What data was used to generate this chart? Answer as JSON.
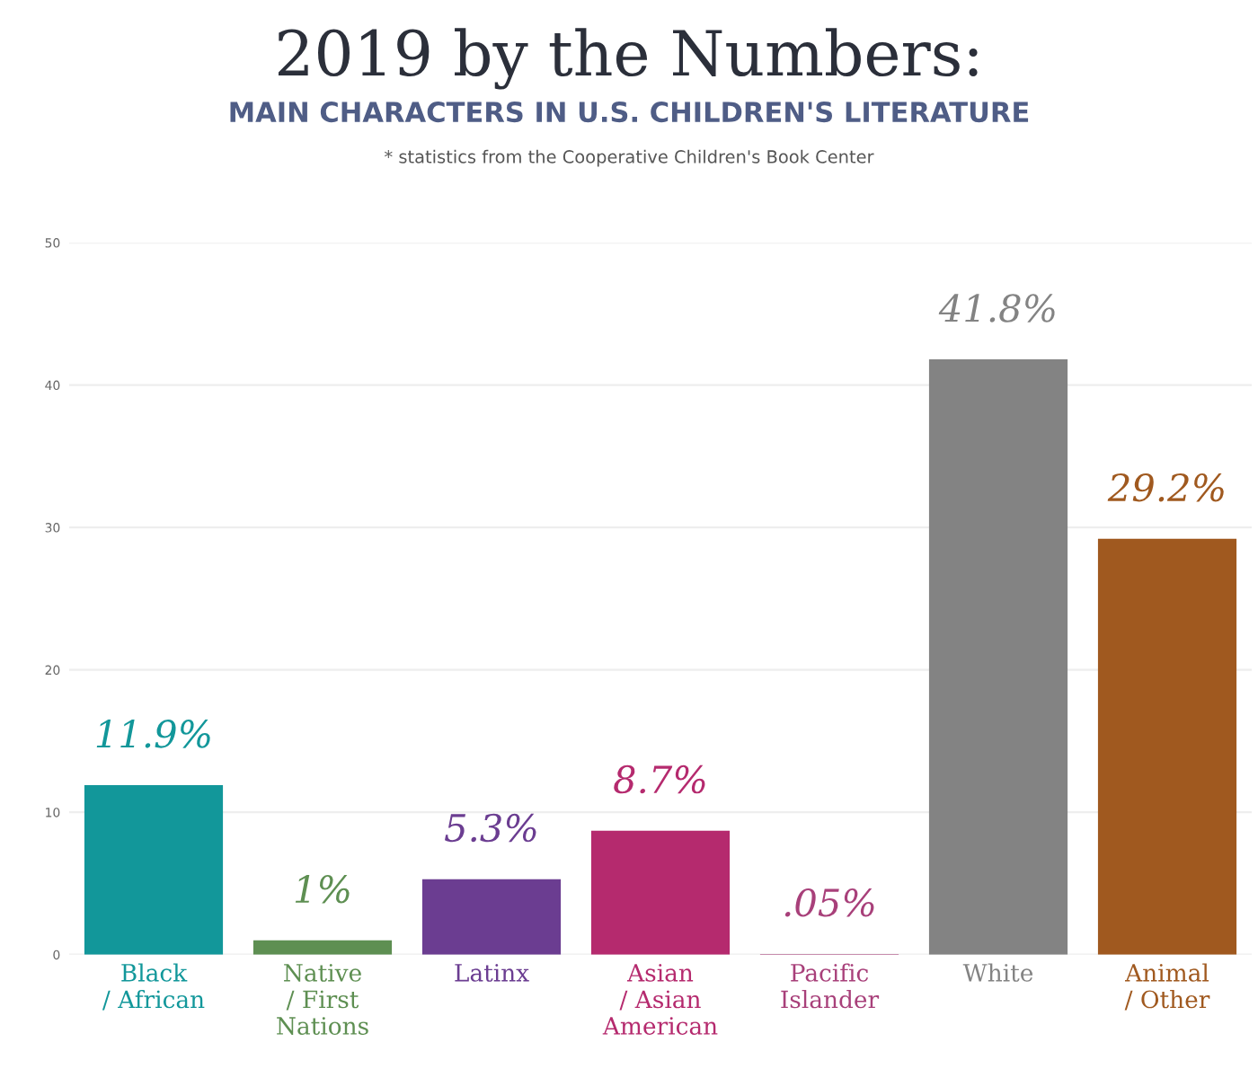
{
  "chart_data": {
    "type": "bar",
    "title": "2019 by the Numbers:",
    "subtitle": "MAIN CHARACTERS IN U.S. CHILDREN'S LITERATURE",
    "annotations": [
      "* statistics from the Cooperative Children's Book Center"
    ],
    "categories": [
      "Black\n/ African",
      "Native\n/ First\nNations",
      "Latinx",
      "Asian\n/ Asian\nAmerican",
      "Pacific\nIslander",
      "White",
      "Animal\n/ Other"
    ],
    "values": [
      11.9,
      1,
      5.3,
      8.7,
      0.05,
      41.8,
      29.2
    ],
    "colors": [
      "#12979a",
      "#5e8f52",
      "#6b3d91",
      "#b52a6e",
      "#a8407a",
      "#838383",
      "#a0591f"
    ],
    "value_labels": [
      "11.9%",
      "1%",
      "5.3%",
      "8.7%",
      ".05%",
      "41.8%",
      "29.2%"
    ],
    "ylim": [
      0,
      50
    ],
    "yticks": [
      0,
      10,
      20,
      30,
      40,
      50
    ],
    "grid": "y"
  }
}
